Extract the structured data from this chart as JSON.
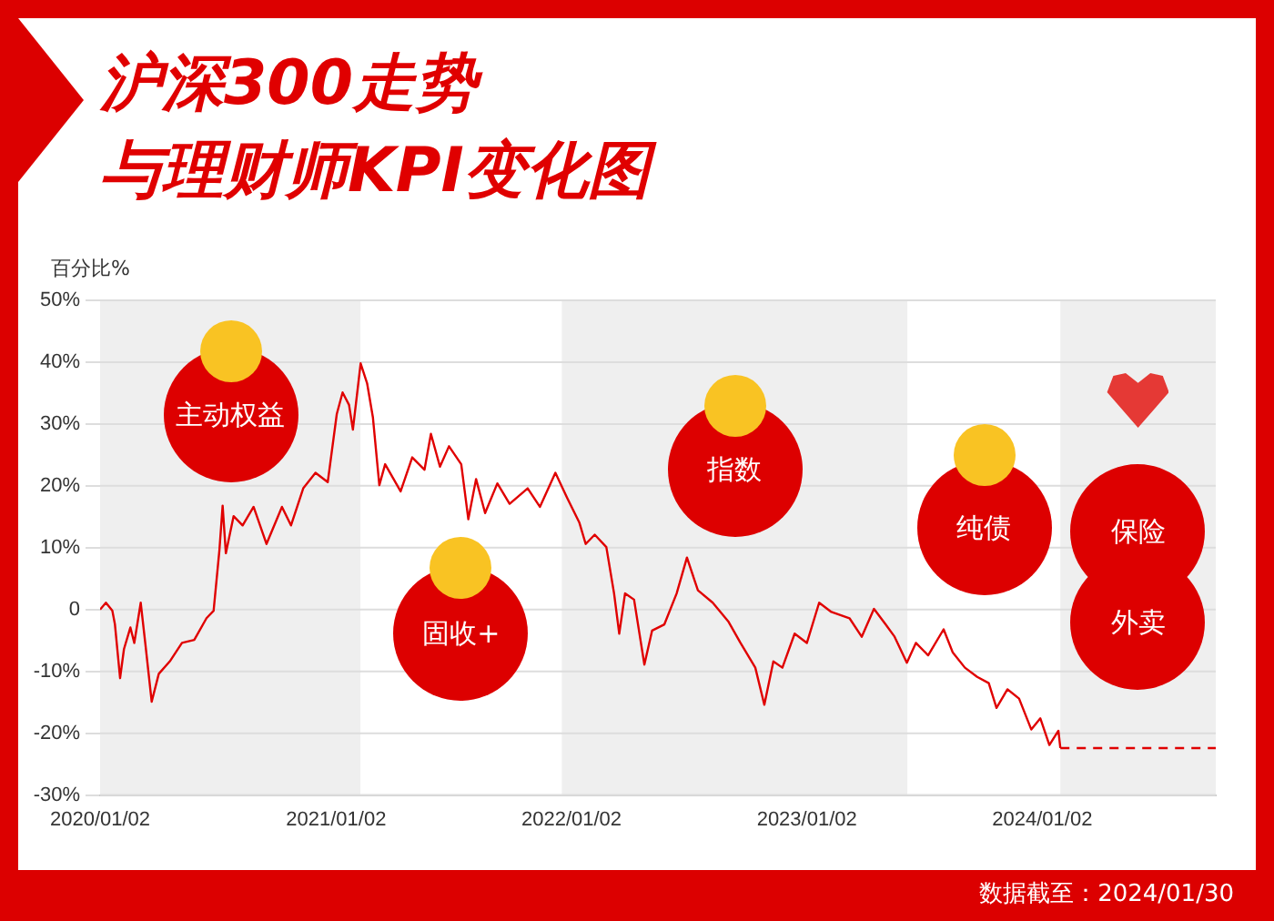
{
  "chart_data": {
    "type": "line",
    "title": "沪深300走势",
    "subtitle": "与理财师KPI变化图",
    "ylabel": "百分比%",
    "annotations": [
      "数据截至：2024/01/30",
      "外卖"
    ],
    "xlim": [
      "2020-01-02",
      "2024-09-27"
    ],
    "xticks": [
      {
        "value": "2020-01-02",
        "label": "2020/01/02"
      },
      {
        "value": "2021-01-02",
        "label": "2021/01/02"
      },
      {
        "value": "2022-01-02",
        "label": "2022/01/02"
      },
      {
        "value": "2023-01-02",
        "label": "2023/01/02"
      },
      {
        "value": "2024-01-02",
        "label": "2024/01/02"
      }
    ],
    "ylim": [
      -30,
      50
    ],
    "yticks": [
      {
        "value": -30,
        "label": "-30%"
      },
      {
        "value": -20,
        "label": "-20%"
      },
      {
        "value": -10,
        "label": "-10%"
      },
      0,
      {
        "value": 10,
        "label": "10%"
      },
      {
        "value": 20,
        "label": "20%"
      },
      {
        "value": 30,
        "label": "30%"
      },
      {
        "value": 40,
        "label": "40%"
      },
      {
        "value": 50,
        "label": "50%"
      }
    ],
    "grid": "y",
    "legend": false,
    "marker": "none",
    "bands": [
      {
        "axis": "x",
        "from": "2020-01-02",
        "to": "2021-02-09",
        "label": "主动权益",
        "color": "#efefef"
      },
      {
        "axis": "x",
        "from": "2021-02-09",
        "to": "2021-12-18",
        "label": "固收+",
        "color": "#ffffff"
      },
      {
        "axis": "x",
        "from": "2021-12-18",
        "to": "2023-06-07",
        "label": "指数",
        "color": "#efefef"
      },
      {
        "axis": "x",
        "from": "2023-06-07",
        "to": "2024-01-30",
        "label": "纯债",
        "color": "#ffffff"
      },
      {
        "axis": "x",
        "from": "2024-01-30",
        "to": "2024-09-27",
        "label": "保险",
        "color": "#efefef"
      }
    ],
    "series": [
      {
        "color": "#e00000",
        "x": [
          "2020-01-02",
          "2020-01-11",
          "2020-01-21",
          "2020-01-25",
          "2020-02-02",
          "2020-02-08",
          "2020-02-18",
          "2020-02-24",
          "2020-03-05",
          "2020-03-12",
          "2020-03-22",
          "2020-04-02",
          "2020-04-19",
          "2020-05-08",
          "2020-05-27",
          "2020-06-15",
          "2020-06-26",
          "2020-07-05",
          "2020-07-10",
          "2020-07-15",
          "2020-07-27",
          "2020-08-10",
          "2020-08-27",
          "2020-09-16",
          "2020-10-10",
          "2020-10-24",
          "2020-11-12",
          "2020-12-01",
          "2020-12-20",
          "2021-01-03",
          "2021-01-12",
          "2021-01-22",
          "2021-01-28",
          "2021-02-09",
          "2021-02-19",
          "2021-02-28",
          "2021-03-10",
          "2021-03-19",
          "2021-04-12",
          "2021-04-30",
          "2021-05-19",
          "2021-05-29",
          "2021-06-12",
          "2021-06-26",
          "2021-07-15",
          "2021-07-26",
          "2021-08-07",
          "2021-08-21",
          "2021-09-09",
          "2021-09-28",
          "2021-10-26",
          "2021-11-14",
          "2021-12-08",
          "2021-12-26",
          "2022-01-14",
          "2022-01-24",
          "2022-02-07",
          "2022-02-25",
          "2022-03-09",
          "2022-03-17",
          "2022-03-26",
          "2022-04-09",
          "2022-04-25",
          "2022-05-07",
          "2022-05-26",
          "2022-06-14",
          "2022-06-30",
          "2022-07-17",
          "2022-08-09",
          "2022-09-02",
          "2022-09-21",
          "2022-10-14",
          "2022-10-28",
          "2022-11-11",
          "2022-11-25",
          "2022-12-14",
          "2023-01-02",
          "2023-01-21",
          "2023-02-09",
          "2023-03-09",
          "2023-03-28",
          "2023-04-16",
          "2023-05-04",
          "2023-05-18",
          "2023-06-06",
          "2023-06-20",
          "2023-07-09",
          "2023-08-02",
          "2023-08-16",
          "2023-09-04",
          "2023-09-23",
          "2023-10-11",
          "2023-10-23",
          "2023-11-09",
          "2023-11-27",
          "2023-12-16",
          "2023-12-30",
          "2024-01-13",
          "2024-01-27",
          "2024-01-30"
        ],
        "values": [
          0,
          1.1,
          -0.2,
          -2.4,
          -11.1,
          -6.4,
          -2.9,
          -5.4,
          1.1,
          -5.4,
          -14.9,
          -10.4,
          -8.4,
          -5.4,
          -4.9,
          -1.4,
          -0.2,
          9.6,
          16.8,
          9.1,
          15.1,
          13.6,
          16.6,
          10.6,
          16.6,
          13.6,
          19.6,
          22.1,
          20.6,
          31.6,
          35.1,
          33.1,
          29.1,
          39.8,
          36.6,
          31.1,
          20.1,
          23.5,
          19.1,
          24.6,
          22.6,
          28.4,
          23.1,
          26.4,
          23.5,
          14.6,
          21.1,
          15.6,
          20.4,
          17.1,
          19.6,
          16.6,
          22.1,
          18.1,
          14.1,
          10.6,
          12.1,
          10.1,
          2.6,
          -3.9,
          2.6,
          1.6,
          -8.9,
          -3.4,
          -2.4,
          2.6,
          8.4,
          3.1,
          1.1,
          -1.9,
          -5.4,
          -9.4,
          -15.4,
          -8.4,
          -9.4,
          -3.9,
          -5.4,
          1.1,
          -0.4,
          -1.4,
          -4.4,
          0.1,
          -2.4,
          -4.4,
          -8.6,
          -5.4,
          -7.4,
          -3.2,
          -6.9,
          -9.4,
          -10.9,
          -11.9,
          -15.9,
          -12.9,
          -14.4,
          -19.4,
          -17.6,
          -21.9,
          -19.6,
          -22.4
        ]
      },
      {
        "type": "line",
        "line_style": "dashed",
        "color": "#e00000",
        "x": [
          "2024-01-30",
          "2024-09-27"
        ],
        "values": [
          -22.4,
          -22.4
        ]
      }
    ]
  }
}
